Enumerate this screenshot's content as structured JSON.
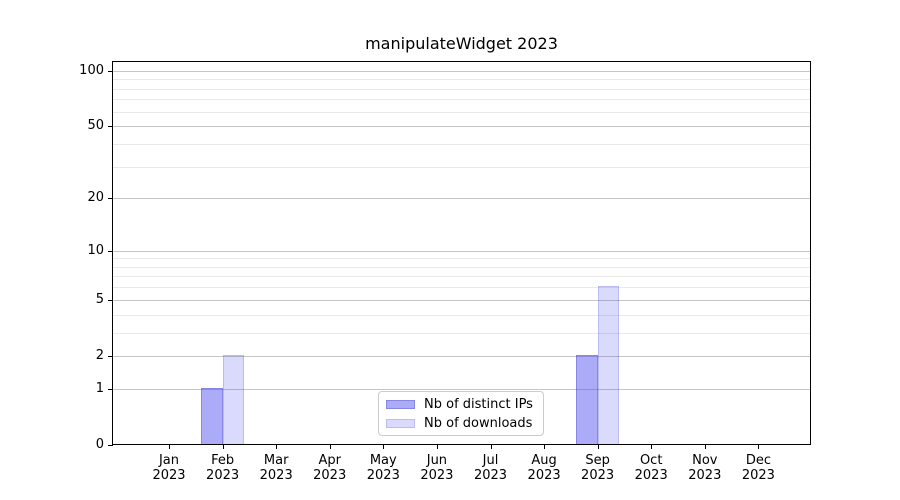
{
  "title": "manipulateWidget 2023",
  "chart_data": {
    "type": "bar",
    "title": "manipulateWidget 2023",
    "categories": [
      "Jan",
      "Feb",
      "Mar",
      "Apr",
      "May",
      "Jun",
      "Jul",
      "Aug",
      "Sep",
      "Oct",
      "Nov",
      "Dec"
    ],
    "year_label": "2023",
    "series": [
      {
        "name": "Nb of distinct IPs",
        "fill": "rgba(68,68,238,0.45)",
        "edge": "rgba(50,50,185,0.30)",
        "values": [
          0,
          1,
          0,
          0,
          0,
          0,
          0,
          0,
          2,
          0,
          0,
          0
        ]
      },
      {
        "name": "Nb of downloads",
        "fill": "rgba(68,68,238,0.20)",
        "edge": "rgba(50,50,185,0.18)",
        "values": [
          0,
          2,
          0,
          0,
          0,
          0,
          0,
          0,
          6,
          0,
          0,
          0
        ]
      }
    ],
    "y_scale": "log1p",
    "y_axis_ticks": [
      0,
      1,
      2,
      5,
      10,
      20,
      50,
      100
    ],
    "y_minor_gridlines": [
      3,
      4,
      6,
      7,
      8,
      9,
      30,
      40,
      60,
      70,
      80,
      90
    ],
    "y_max": 111.4,
    "ylim": [
      0,
      111.4
    ],
    "grid": true,
    "legend_position": "lower center",
    "colors": {
      "axis": "#000000",
      "grid_major": "#c6c6c6",
      "grid_minor": "#e9e9e9",
      "background": "#ffffff"
    }
  }
}
